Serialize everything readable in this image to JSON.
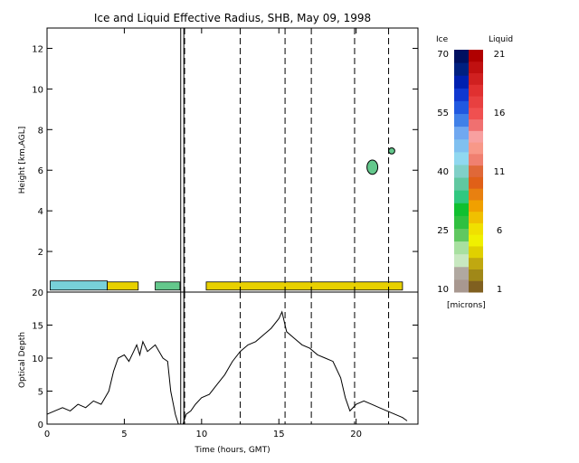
{
  "colors": {
    "ice_scale": [
      "#a89890",
      "#b0a8a0",
      "#c8e8c0",
      "#a8e0a0",
      "#60c860",
      "#30c040",
      "#10c030",
      "#30c880",
      "#60c8a0",
      "#80d0c8",
      "#90d8f0",
      "#80c0f0",
      "#70a8f0",
      "#4080e8",
      "#2058e0",
      "#1038d0",
      "#0020b0",
      "#002080",
      "#001060"
    ],
    "liquid_scale": [
      "#806020",
      "#a08818",
      "#c0a810",
      "#e0d000",
      "#f0f000",
      "#f0e000",
      "#f0c000",
      "#f0a000",
      "#e88010",
      "#e06018",
      "#e06838",
      "#f08070",
      "#f89888",
      "#f8a0a0",
      "#f07070",
      "#f05050",
      "#e84040",
      "#e03030",
      "#d02020",
      "#c01010",
      "#b00000"
    ],
    "cloud_ice_fill": "#64c88c",
    "cloud_liquid_fill": "#e8d000",
    "cloud_mixed_fill": "#78d0d8"
  },
  "chart_data": [
    {
      "type": "heatmap",
      "title": "Ice and Liquid Effective Radius, SHB, May 09, 1998",
      "xlabel": "",
      "ylabel": "Height [km,AGL]",
      "xlim": [
        0,
        24
      ],
      "ylim": [
        0,
        13
      ],
      "yticks": [
        2,
        4,
        6,
        8,
        10,
        12
      ],
      "vertical_lines": [
        {
          "x": 8.65,
          "style": "solid"
        },
        {
          "x": 8.85,
          "style": "solid"
        },
        {
          "x": 8.9,
          "style": "dashed"
        },
        {
          "x": 12.5,
          "style": "dashed"
        },
        {
          "x": 15.4,
          "style": "dashed"
        },
        {
          "x": 17.1,
          "style": "dashed"
        },
        {
          "x": 19.9,
          "style": "dashed"
        },
        {
          "x": 22.1,
          "style": "dashed"
        }
      ],
      "cloud_regions": [
        {
          "phase": "liquid-ice-mix",
          "t_start": 0.2,
          "t_end": 3.9,
          "z_bottom": 0.1,
          "z_top": 0.55,
          "radius_approx": "ice ~38 microns"
        },
        {
          "phase": "liquid",
          "t_start": 3.9,
          "t_end": 5.9,
          "z_bottom": 0.1,
          "z_top": 0.5,
          "radius_approx": "liquid ~6 microns"
        },
        {
          "phase": "ice",
          "t_start": 7.0,
          "t_end": 8.6,
          "z_bottom": 0.1,
          "z_top": 0.5,
          "radius_approx": "ice ~35 microns"
        },
        {
          "phase": "liquid",
          "t_start": 10.3,
          "t_end": 23.0,
          "z_bottom": 0.1,
          "z_top": 0.5,
          "radius_approx": "liquid ~6-8 microns"
        },
        {
          "phase": "ice",
          "t_start": 20.7,
          "t_end": 21.4,
          "z_bottom": 5.8,
          "z_top": 6.5,
          "radius_approx": "ice ~40 microns"
        },
        {
          "phase": "ice",
          "t_start": 22.1,
          "t_end": 22.5,
          "z_bottom": 6.8,
          "z_top": 7.1,
          "radius_approx": "ice ~40 microns"
        }
      ]
    },
    {
      "type": "line",
      "xlabel": "Time (hours, GMT)",
      "ylabel": "Optical Depth",
      "xlim": [
        0,
        24
      ],
      "ylim": [
        0,
        20
      ],
      "xticks": [
        0,
        5,
        10,
        15,
        20
      ],
      "yticks": [
        0,
        5,
        10,
        15,
        20
      ],
      "series": [
        {
          "x": [
            0.0,
            0.5,
            1.0,
            1.5,
            2.0,
            2.5,
            3.0,
            3.5,
            4.0,
            4.3,
            4.6,
            5.0,
            5.3,
            5.6,
            5.8,
            6.0,
            6.2,
            6.5,
            7.0,
            7.5,
            7.8,
            8.0,
            8.3,
            8.5,
            8.8,
            9.0,
            9.3,
            9.6,
            10.0,
            10.5,
            11.0,
            11.5,
            12.0,
            12.5,
            13.0,
            13.5,
            14.0,
            14.5,
            15.0,
            15.2,
            15.5,
            16.0,
            16.5,
            17.0,
            17.5,
            18.0,
            18.5,
            19.0,
            19.3,
            19.6,
            20.0,
            20.5,
            21.0,
            21.5,
            22.0,
            22.5,
            23.0,
            23.3
          ],
          "values": [
            1.5,
            2.0,
            2.5,
            2.0,
            3.0,
            2.5,
            3.5,
            3.0,
            5.0,
            8.0,
            10.0,
            10.5,
            9.5,
            11.0,
            12.0,
            10.5,
            12.5,
            11.0,
            12.0,
            10.0,
            9.5,
            5.0,
            1.5,
            0.0,
            0.0,
            1.5,
            2.0,
            3.0,
            4.0,
            4.5,
            6.0,
            7.5,
            9.5,
            11.0,
            12.0,
            12.5,
            13.5,
            14.5,
            16.0,
            17.0,
            14.0,
            13.0,
            12.0,
            11.5,
            10.5,
            10.0,
            9.5,
            7.0,
            4.0,
            2.0,
            3.0,
            3.5,
            3.0,
            2.5,
            2.0,
            1.5,
            1.0,
            0.5
          ]
        }
      ]
    }
  ],
  "colorbar": {
    "ice_label": "Ice",
    "liquid_label": "Liquid",
    "ice_ticks": [
      "70",
      "55",
      "40",
      "25",
      "10"
    ],
    "liquid_ticks": [
      "21",
      "16",
      "11",
      "6",
      "1"
    ],
    "unit_label": "[microns]"
  }
}
